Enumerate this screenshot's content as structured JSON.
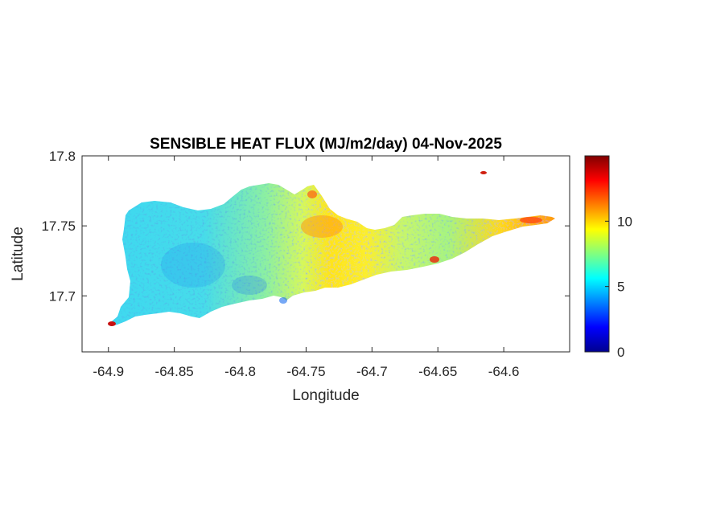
{
  "chart_data": {
    "type": "heatmap",
    "title": "SENSIBLE HEAT FLUX (MJ/m2/day) 04-Nov-2025",
    "xlabel": "Longitude",
    "ylabel": "Latitude",
    "xlim": [
      -64.92,
      -64.55
    ],
    "ylim": [
      17.66,
      17.8
    ],
    "x_ticks": [
      -64.9,
      -64.85,
      -64.8,
      -64.75,
      -64.7,
      -64.65,
      -64.6
    ],
    "x_tick_labels": [
      "-64.9",
      "-64.85",
      "-64.8",
      "-64.75",
      "-64.7",
      "-64.65",
      "-64.6"
    ],
    "y_ticks": [
      17.7,
      17.75,
      17.8
    ],
    "y_tick_labels": [
      "17.7",
      "17.75",
      "17.8"
    ],
    "colorbar": {
      "colormap": "jet",
      "range": [
        0,
        15
      ],
      "ticks": [
        0,
        5,
        10
      ],
      "tick_labels": [
        "0",
        "5",
        "10"
      ]
    },
    "regions": [
      {
        "lon_range": [
          -64.9,
          -64.8
        ],
        "approx_value": 5.5,
        "note": "western island"
      },
      {
        "lon_range": [
          -64.8,
          -64.7
        ],
        "approx_value": 9,
        "note": "central island"
      },
      {
        "lon_range": [
          -64.7,
          -64.565
        ],
        "approx_value": 8.5,
        "note": "eastern island"
      }
    ],
    "grid": false
  }
}
